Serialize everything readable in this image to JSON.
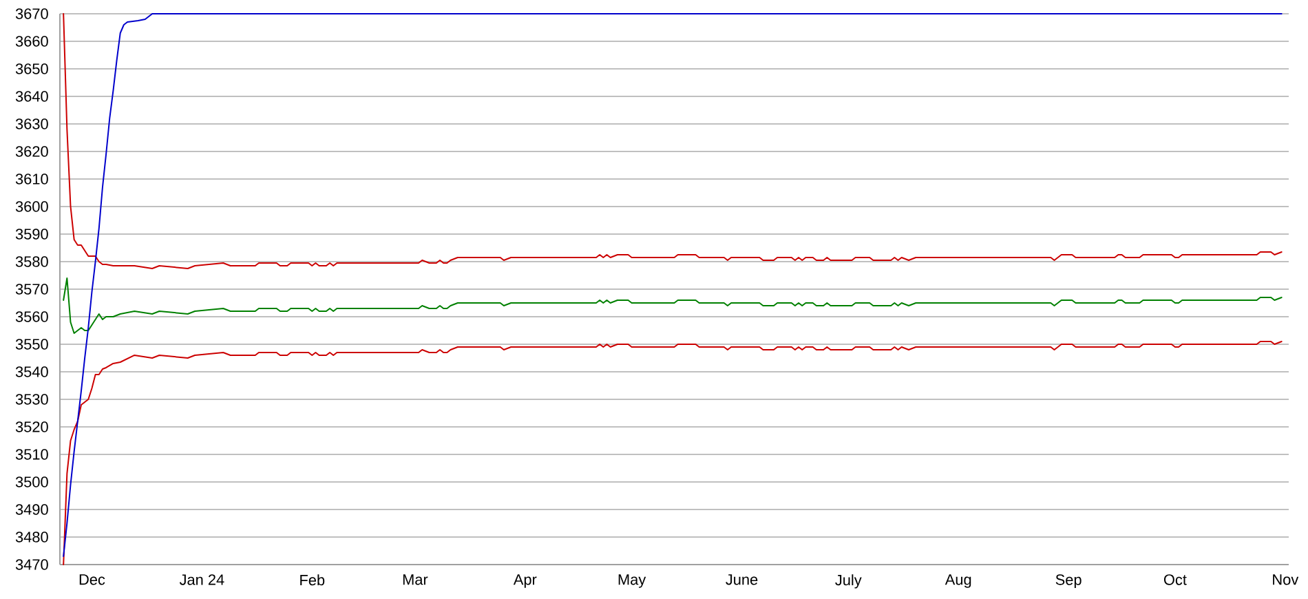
{
  "chart_data": {
    "type": "line",
    "x": [
      "2023-11-23",
      "2023-11-24",
      "2023-11-25",
      "2023-11-26",
      "2023-11-27",
      "2023-11-28",
      "2023-11-29",
      "2023-11-30",
      "2023-12-01",
      "2023-12-02",
      "2023-12-03",
      "2023-12-04",
      "2023-12-05",
      "2023-12-07",
      "2023-12-09",
      "2023-12-13",
      "2023-12-18",
      "2023-12-20",
      "2023-12-28",
      "2023-12-30",
      "2024-01-07",
      "2024-01-09",
      "2024-01-16",
      "2024-01-17",
      "2024-01-22",
      "2024-01-23",
      "2024-01-25",
      "2024-01-26",
      "2024-01-31",
      "2024-02-01",
      "2024-02-02",
      "2024-02-03",
      "2024-02-05",
      "2024-02-06",
      "2024-02-07",
      "2024-02-08",
      "2024-03-02",
      "2024-03-03",
      "2024-03-05",
      "2024-03-07",
      "2024-03-08",
      "2024-03-09",
      "2024-03-10",
      "2024-03-11",
      "2024-03-13",
      "2024-03-25",
      "2024-03-26",
      "2024-03-28",
      "2024-04-21",
      "2024-04-22",
      "2024-04-23",
      "2024-04-24",
      "2024-04-25",
      "2024-04-27",
      "2024-04-30",
      "2024-05-01",
      "2024-05-13",
      "2024-05-14",
      "2024-05-19",
      "2024-05-20",
      "2024-05-27",
      "2024-05-28",
      "2024-05-29",
      "2024-06-06",
      "2024-06-07",
      "2024-06-10",
      "2024-06-11",
      "2024-06-15",
      "2024-06-16",
      "2024-06-17",
      "2024-06-18",
      "2024-06-19",
      "2024-06-21",
      "2024-06-22",
      "2024-06-24",
      "2024-06-25",
      "2024-06-26",
      "2024-07-02",
      "2024-07-03",
      "2024-07-07",
      "2024-07-08",
      "2024-07-13",
      "2024-07-14",
      "2024-07-15",
      "2024-07-16",
      "2024-07-18",
      "2024-07-20",
      "2024-08-27",
      "2024-08-28",
      "2024-08-30",
      "2024-09-02",
      "2024-09-03",
      "2024-09-14",
      "2024-09-15",
      "2024-09-16",
      "2024-09-17",
      "2024-09-21",
      "2024-09-22",
      "2024-09-30",
      "2024-10-01",
      "2024-10-02",
      "2024-10-03",
      "2024-10-24",
      "2024-10-25",
      "2024-10-28",
      "2024-10-29",
      "2024-10-31"
    ],
    "series": [
      {
        "color": "#cc0000",
        "values": [
          3670,
          3628,
          3600,
          3588,
          3586,
          3586,
          3584,
          3582,
          3582,
          3582,
          3580,
          3579,
          3579,
          3578.5,
          3578.5,
          3578.5,
          3577.5,
          3578.5,
          3577.5,
          3578.5,
          3579.5,
          3578.5,
          3578.5,
          3579.5,
          3579.5,
          3578.5,
          3578.5,
          3579.5,
          3579.5,
          3578.5,
          3579.5,
          3578.5,
          3578.5,
          3579.5,
          3578.5,
          3579.5,
          3579.5,
          3580.5,
          3579.5,
          3579.5,
          3580.5,
          3579.5,
          3579.5,
          3580.5,
          3581.5,
          3581.5,
          3580.5,
          3581.5,
          3581.5,
          3582.5,
          3581.5,
          3582.5,
          3581.5,
          3582.5,
          3582.5,
          3581.5,
          3581.5,
          3582.5,
          3582.5,
          3581.5,
          3581.5,
          3580.5,
          3581.5,
          3581.5,
          3580.5,
          3580.5,
          3581.5,
          3581.5,
          3580.5,
          3581.5,
          3580.5,
          3581.5,
          3581.5,
          3580.5,
          3580.5,
          3581.5,
          3580.5,
          3580.5,
          3581.5,
          3581.5,
          3580.5,
          3580.5,
          3581.5,
          3580.5,
          3581.5,
          3580.5,
          3581.5,
          3581.5,
          3580.5,
          3582.5,
          3582.5,
          3581.5,
          3581.5,
          3582.5,
          3582.5,
          3581.5,
          3581.5,
          3582.5,
          3582.5,
          3581.5,
          3581.5,
          3582.5,
          3582.5,
          3583.5,
          3583.5,
          3582.5,
          3583.5
        ]
      },
      {
        "color": "#008000",
        "values": [
          3566,
          3574,
          3558,
          3554,
          3555,
          3556,
          3555,
          3555,
          3557,
          3559,
          3561,
          3559,
          3560,
          3560,
          3561,
          3562,
          3561,
          3562,
          3561,
          3562,
          3563,
          3562,
          3562,
          3563,
          3563,
          3562,
          3562,
          3563,
          3563,
          3562,
          3563,
          3562,
          3562,
          3563,
          3562,
          3563,
          3563,
          3564,
          3563,
          3563,
          3564,
          3563,
          3563,
          3564,
          3565,
          3565,
          3564,
          3565,
          3565,
          3566,
          3565,
          3566,
          3565,
          3566,
          3566,
          3565,
          3565,
          3566,
          3566,
          3565,
          3565,
          3564,
          3565,
          3565,
          3564,
          3564,
          3565,
          3565,
          3564,
          3565,
          3564,
          3565,
          3565,
          3564,
          3564,
          3565,
          3564,
          3564,
          3565,
          3565,
          3564,
          3564,
          3565,
          3564,
          3565,
          3564,
          3565,
          3565,
          3564,
          3566,
          3566,
          3565,
          3565,
          3566,
          3566,
          3565,
          3565,
          3566,
          3566,
          3565,
          3565,
          3566,
          3566,
          3567,
          3567,
          3566,
          3567
        ]
      },
      {
        "color": "#cc0000",
        "values": [
          3470,
          3503,
          3515,
          3519,
          3522,
          3528,
          3529,
          3530,
          3534,
          3539,
          3539,
          3541,
          3541.5,
          3543,
          3543.5,
          3546,
          3545,
          3546,
          3545,
          3546,
          3547,
          3546,
          3546,
          3547,
          3547,
          3546,
          3546,
          3547,
          3547,
          3546,
          3547,
          3546,
          3546,
          3547,
          3546,
          3547,
          3547,
          3548,
          3547,
          3547,
          3548,
          3547,
          3547,
          3548,
          3549,
          3549,
          3548,
          3549,
          3549,
          3550,
          3549,
          3550,
          3549,
          3550,
          3550,
          3549,
          3549,
          3550,
          3550,
          3549,
          3549,
          3548,
          3549,
          3549,
          3548,
          3548,
          3549,
          3549,
          3548,
          3549,
          3548,
          3549,
          3549,
          3548,
          3548,
          3549,
          3548,
          3548,
          3549,
          3549,
          3548,
          3548,
          3549,
          3548,
          3549,
          3548,
          3549,
          3549,
          3548,
          3550,
          3550,
          3549,
          3549,
          3550,
          3550,
          3549,
          3549,
          3550,
          3550,
          3549,
          3549,
          3550,
          3550,
          3551,
          3551,
          3550,
          3551
        ]
      },
      {
        "color": "#0000cc",
        "x": [
          "2023-11-23",
          "2023-11-24",
          "2023-11-25",
          "2023-11-26",
          "2023-11-27",
          "2023-11-28",
          "2023-11-29",
          "2023-11-30",
          "2023-12-01",
          "2023-12-02",
          "2023-12-03",
          "2023-12-04",
          "2023-12-05",
          "2023-12-06",
          "2023-12-07",
          "2023-12-08",
          "2023-12-09",
          "2023-12-10",
          "2023-12-11",
          "2023-12-14",
          "2023-12-16",
          "2023-12-17",
          "2023-12-18",
          "2024-10-31"
        ],
        "values": [
          3473,
          3485,
          3499,
          3511,
          3522,
          3533,
          3545,
          3556,
          3569,
          3580,
          3592,
          3607,
          3619,
          3632,
          3642,
          3653,
          3663,
          3666,
          3667,
          3667.5,
          3668,
          3669,
          3670,
          3670
        ]
      }
    ],
    "xlim": [
      "2023-11-22",
      "2024-11-02"
    ],
    "xticks": [
      {
        "value": "2023-12-01",
        "label": "Dec"
      },
      {
        "value": "2024-01-01",
        "label": "Jan 24"
      },
      {
        "value": "2024-02-01",
        "label": "Feb"
      },
      {
        "value": "2024-03-01",
        "label": "Mar"
      },
      {
        "value": "2024-04-01",
        "label": "Apr"
      },
      {
        "value": "2024-05-01",
        "label": "May"
      },
      {
        "value": "2024-06-01",
        "label": "June"
      },
      {
        "value": "2024-07-01",
        "label": "July"
      },
      {
        "value": "2024-08-01",
        "label": "Aug"
      },
      {
        "value": "2024-09-01",
        "label": "Sep"
      },
      {
        "value": "2024-10-01",
        "label": "Oct"
      },
      {
        "value": "2024-11-01",
        "label": "Nov"
      }
    ],
    "ylim": [
      3470,
      3670
    ],
    "yticks": [
      3470,
      3480,
      3490,
      3500,
      3510,
      3520,
      3530,
      3540,
      3550,
      3560,
      3570,
      3580,
      3590,
      3600,
      3610,
      3620,
      3630,
      3640,
      3650,
      3660,
      3670
    ],
    "grid": "y",
    "marker": "none",
    "line_style": "solid"
  }
}
